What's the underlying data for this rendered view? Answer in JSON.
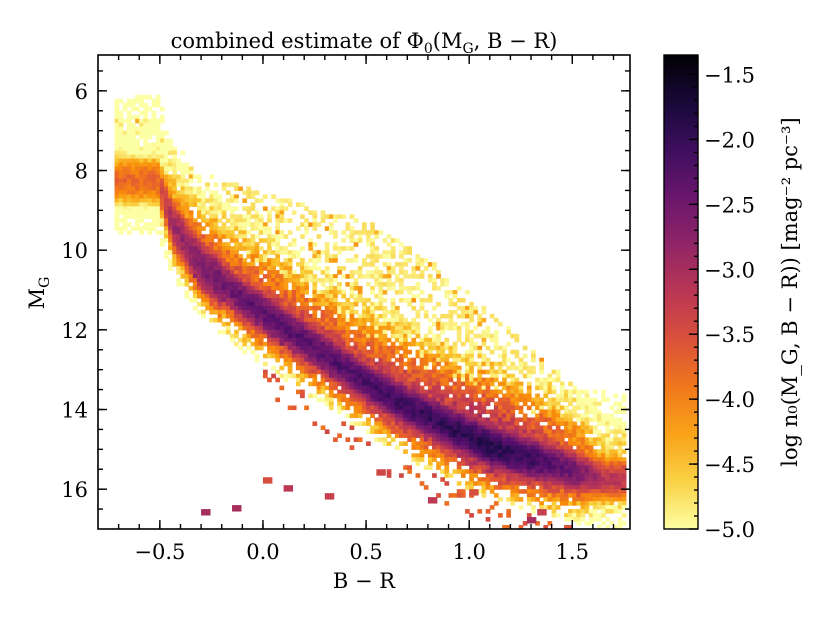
{
  "chart_data": {
    "type": "heatmap",
    "title": "combined estimate of Φ₀(M_G, B − R)",
    "title_parts": {
      "pre": "combined estimate of Φ",
      "sub": "0",
      "args": "(M",
      "args_sub": "G",
      "post": ", B − R)"
    },
    "xlabel": "B − R",
    "ylabel": {
      "main": "M",
      "sub": "G"
    },
    "xlim": [
      -0.8,
      1.78
    ],
    "ylim": [
      17.0,
      5.1
    ],
    "y_inverted": true,
    "x_ticks": [
      -0.5,
      0.0,
      0.5,
      1.0,
      1.5
    ],
    "x_tick_labels": [
      "−0.5",
      "0.0",
      "0.5",
      "1.0",
      "1.5"
    ],
    "y_ticks": [
      6,
      8,
      10,
      12,
      14,
      16
    ],
    "y_tick_labels": [
      "6",
      "8",
      "10",
      "12",
      "14",
      "16"
    ],
    "colorbar": {
      "label": "log n₀(M_G, B − R)) [mag⁻² pc⁻³]",
      "label_text": "log n₀(M_G, B − R)) [mag⁻² pc⁻³]",
      "range": [
        -5.0,
        -1.35
      ],
      "ticks": [
        -1.5,
        -2.0,
        -2.5,
        -3.0,
        -3.5,
        -4.0,
        -4.5,
        -5.0
      ],
      "tick_labels": [
        "−1.5",
        "−2.0",
        "−2.5",
        "−3.0",
        "−3.5",
        "−4.0",
        "−4.5",
        "−5.0"
      ],
      "colormap": "inferno_r"
    },
    "grid": false,
    "bin_size": {
      "x": 0.02,
      "y": 0.1
    },
    "main_sequence_ridge": [
      {
        "x": -0.52,
        "y": 8.2,
        "peak": -3.6
      },
      {
        "x": -0.45,
        "y": 9.3,
        "peak": -2.8
      },
      {
        "x": -0.3,
        "y": 10.4,
        "peak": -2.4
      },
      {
        "x": -0.1,
        "y": 11.2,
        "peak": -2.2
      },
      {
        "x": 0.1,
        "y": 11.9,
        "peak": -2.1
      },
      {
        "x": 0.3,
        "y": 12.6,
        "peak": -2.1
      },
      {
        "x": 0.5,
        "y": 13.3,
        "peak": -2.0
      },
      {
        "x": 0.7,
        "y": 13.9,
        "peak": -1.9
      },
      {
        "x": 0.9,
        "y": 14.4,
        "peak": -1.8
      },
      {
        "x": 1.1,
        "y": 14.9,
        "peak": -1.7
      },
      {
        "x": 1.3,
        "y": 15.2,
        "peak": -1.9
      },
      {
        "x": 1.5,
        "y": 15.5,
        "peak": -2.3
      },
      {
        "x": 1.65,
        "y": 15.7,
        "peak": -3.0
      }
    ],
    "secondary_ridge": [
      {
        "x": -0.3,
        "y": 10.6
      },
      {
        "x": 0.0,
        "y": 11.8
      },
      {
        "x": 0.3,
        "y": 12.8
      },
      {
        "x": 0.6,
        "y": 13.7
      },
      {
        "x": 0.9,
        "y": 14.5
      },
      {
        "x": 1.2,
        "y": 15.0
      }
    ],
    "upper_sparse_envelope": [
      {
        "x": -0.55,
        "y": 6.6
      },
      {
        "x": -0.4,
        "y": 7.8
      },
      {
        "x": -0.2,
        "y": 8.2
      },
      {
        "x": 0.2,
        "y": 8.8
      },
      {
        "x": 0.5,
        "y": 9.2
      },
      {
        "x": 0.8,
        "y": 10.2
      },
      {
        "x": 1.1,
        "y": 11.5
      },
      {
        "x": 1.4,
        "y": 12.9
      },
      {
        "x": 1.7,
        "y": 14.1
      }
    ],
    "sparse_outliers_bottom": [
      {
        "x": -0.3,
        "y": 16.5,
        "value": -3.0
      },
      {
        "x": -0.15,
        "y": 16.4,
        "value": -3.0
      },
      {
        "x": 0.0,
        "y": 15.7,
        "value": -3.5
      },
      {
        "x": 0.1,
        "y": 15.9,
        "value": -3.2
      },
      {
        "x": 0.3,
        "y": 16.1,
        "value": -3.3
      },
      {
        "x": 0.55,
        "y": 15.5,
        "value": -3.4
      },
      {
        "x": 0.8,
        "y": 16.2,
        "value": -3.2
      },
      {
        "x": 1.0,
        "y": 16.0,
        "value": -3.5
      },
      {
        "x": 1.28,
        "y": 16.7,
        "value": -3.0
      },
      {
        "x": 1.33,
        "y": 16.5,
        "value": -3.3
      }
    ]
  }
}
